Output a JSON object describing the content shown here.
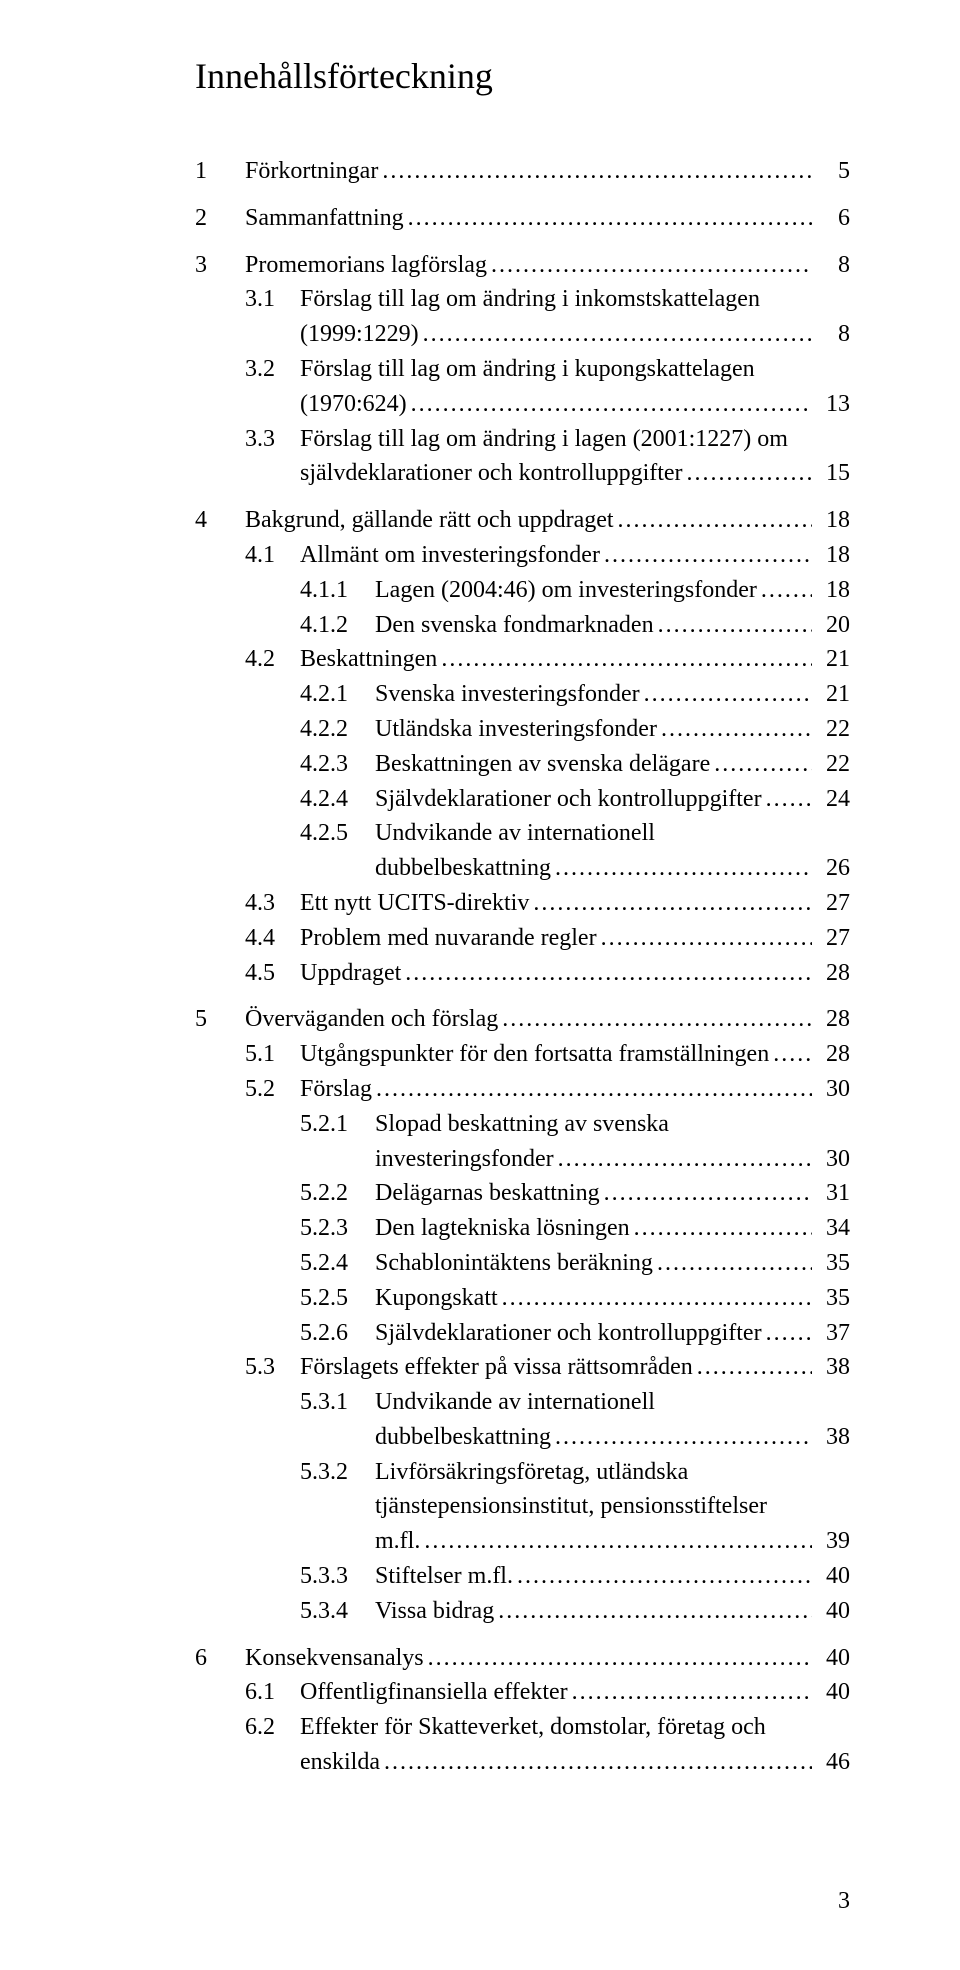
{
  "title": "Innehållsförteckning",
  "page_number": "3",
  "dots": "....................................................................................................................................",
  "toc": [
    {
      "level": 0,
      "num": "1",
      "label": "Förkortningar",
      "page": "5",
      "space_before": 1
    },
    {
      "level": 0,
      "num": "2",
      "label": "Sammanfattning",
      "page": "6",
      "space_before": 1
    },
    {
      "level": 0,
      "num": "3",
      "label": "Promemorians lagförslag",
      "page": "8",
      "space_before": 1
    },
    {
      "level": 1,
      "num": "3.1",
      "label": "Förslag till lag om ändring i inkomstskattelagen"
    },
    {
      "level": 1,
      "cont": 1,
      "num": "",
      "label": "(1999:1229)",
      "page": "8"
    },
    {
      "level": 1,
      "num": "3.2",
      "label": "Förslag till lag om ändring i kupongskattelagen"
    },
    {
      "level": 1,
      "cont": 1,
      "num": "",
      "label": "(1970:624)",
      "page": "13"
    },
    {
      "level": 1,
      "num": "3.3",
      "label": "Förslag till lag om ändring i lagen (2001:1227) om"
    },
    {
      "level": 1,
      "cont": 1,
      "num": "",
      "label": "självdeklarationer och kontrolluppgifter",
      "page": "15"
    },
    {
      "level": 0,
      "num": "4",
      "label": "Bakgrund, gällande rätt och uppdraget",
      "page": "18",
      "space_before": 1
    },
    {
      "level": 1,
      "num": "4.1",
      "label": "Allmänt om investeringsfonder",
      "page": "18"
    },
    {
      "level": 2,
      "num": "4.1.1",
      "label": "Lagen (2004:46) om investeringsfonder",
      "page": "18"
    },
    {
      "level": 2,
      "num": "4.1.2",
      "label": "Den svenska fondmarknaden",
      "page": "20"
    },
    {
      "level": 1,
      "num": "4.2",
      "label": "Beskattningen",
      "page": "21"
    },
    {
      "level": 2,
      "num": "4.2.1",
      "label": "Svenska investeringsfonder",
      "page": "21"
    },
    {
      "level": 2,
      "num": "4.2.2",
      "label": "Utländska investeringsfonder",
      "page": "22"
    },
    {
      "level": 2,
      "num": "4.2.3",
      "label": "Beskattningen av svenska delägare",
      "page": "22"
    },
    {
      "level": 2,
      "num": "4.2.4",
      "label": "Självdeklarationer och kontrolluppgifter",
      "page": "24"
    },
    {
      "level": 2,
      "num": "4.2.5",
      "label": "Undvikande av internationell"
    },
    {
      "level": 2,
      "cont": 1,
      "num": "",
      "label": "dubbelbeskattning",
      "page": "26"
    },
    {
      "level": 1,
      "num": "4.3",
      "label": "Ett nytt UCITS-direktiv",
      "page": "27"
    },
    {
      "level": 1,
      "num": "4.4",
      "label": "Problem med nuvarande regler",
      "page": "27"
    },
    {
      "level": 1,
      "num": "4.5",
      "label": "Uppdraget",
      "page": "28"
    },
    {
      "level": 0,
      "num": "5",
      "label": "Överväganden och förslag",
      "page": "28",
      "space_before": 1
    },
    {
      "level": 1,
      "num": "5.1",
      "label": "Utgångspunkter för den fortsatta framställningen",
      "page": "28"
    },
    {
      "level": 1,
      "num": "5.2",
      "label": "Förslag",
      "page": "30"
    },
    {
      "level": 2,
      "num": "5.2.1",
      "label": "Slopad beskattning av svenska"
    },
    {
      "level": 2,
      "cont": 1,
      "num": "",
      "label": "investeringsfonder",
      "page": "30"
    },
    {
      "level": 2,
      "num": "5.2.2",
      "label": "Delägarnas beskattning",
      "page": "31"
    },
    {
      "level": 2,
      "num": "5.2.3",
      "label": "Den lagtekniska lösningen",
      "page": "34"
    },
    {
      "level": 2,
      "num": "5.2.4",
      "label": "Schablonintäktens beräkning",
      "page": "35"
    },
    {
      "level": 2,
      "num": "5.2.5",
      "label": "Kupongskatt",
      "page": "35"
    },
    {
      "level": 2,
      "num": "5.2.6",
      "label": "Självdeklarationer och kontrolluppgifter",
      "page": "37"
    },
    {
      "level": 1,
      "num": "5.3",
      "label": "Förslagets effekter på vissa rättsområden",
      "page": "38"
    },
    {
      "level": 2,
      "num": "5.3.1",
      "label": "Undvikande av internationell"
    },
    {
      "level": 2,
      "cont": 1,
      "num": "",
      "label": "dubbelbeskattning",
      "page": "38"
    },
    {
      "level": 2,
      "num": "5.3.2",
      "label": "Livförsäkringsföretag, utländska"
    },
    {
      "level": 2,
      "cont": 1,
      "num": "",
      "label": "tjänstepensionsinstitut, pensionsstiftelser"
    },
    {
      "level": 2,
      "cont": 1,
      "num": "",
      "label": "m.fl. ",
      "page": "39"
    },
    {
      "level": 2,
      "num": "5.3.3",
      "label": "Stiftelser m.fl. ",
      "page": "40"
    },
    {
      "level": 2,
      "num": "5.3.4",
      "label": "Vissa bidrag",
      "page": "40"
    },
    {
      "level": 0,
      "num": "6",
      "label": "Konsekvensanalys",
      "page": "40",
      "space_before": 1
    },
    {
      "level": 1,
      "num": "6.1",
      "label": "Offentligfinansiella effekter",
      "page": "40"
    },
    {
      "level": 1,
      "num": "6.2",
      "label": "Effekter för Skatteverket, domstolar, företag och"
    },
    {
      "level": 1,
      "cont": 1,
      "num": "",
      "label": "enskilda",
      "page": "46"
    }
  ]
}
